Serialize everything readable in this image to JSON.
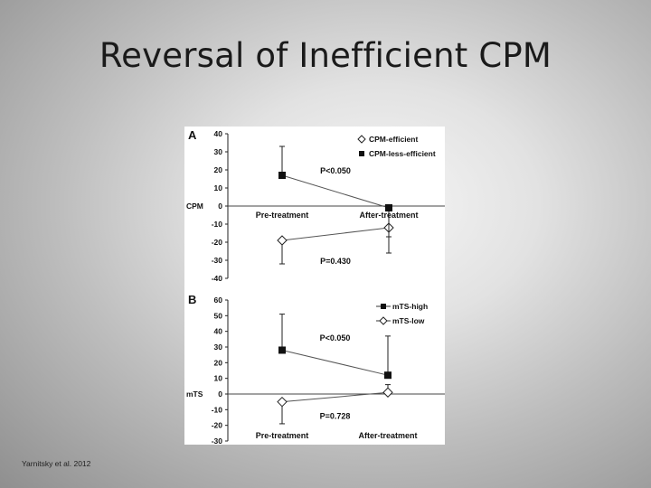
{
  "slide": {
    "title": "Reversal of Inefficient CPM",
    "citation": "Yarnitsky et al. 2012"
  },
  "chart_data": [
    {
      "type": "line",
      "panel_label": "A",
      "ylabel": "CPM",
      "categories": [
        "Pre-treatment",
        "After-treatment"
      ],
      "ylim": [
        -40,
        40
      ],
      "yticks": [
        40,
        30,
        20,
        10,
        0,
        -10,
        -20,
        -30,
        -40
      ],
      "grid": false,
      "legend_position": "top-right",
      "series": [
        {
          "name": "CPM-efficient",
          "marker": "diamond-open",
          "values": [
            -19,
            -12
          ],
          "errors": [
            13,
            14
          ]
        },
        {
          "name": "CPM-less-efficient",
          "marker": "square-filled",
          "values": [
            17,
            -1
          ],
          "errors": [
            16,
            16
          ]
        }
      ],
      "annotations": [
        {
          "text": "P<0.050",
          "x": 0.5,
          "y": 18
        },
        {
          "text": "P=0.430",
          "x": 0.5,
          "y": -32
        }
      ]
    },
    {
      "type": "line",
      "panel_label": "B",
      "ylabel": "mTS",
      "categories": [
        "Pre-treatment",
        "After-treatment"
      ],
      "ylim": [
        -30,
        60
      ],
      "yticks": [
        60,
        50,
        40,
        30,
        20,
        10,
        0,
        -10,
        -20,
        -30
      ],
      "grid": false,
      "legend_position": "top-right",
      "series": [
        {
          "name": "mTS-high",
          "marker": "square-filled",
          "values": [
            28,
            12
          ],
          "errors": [
            23,
            25
          ]
        },
        {
          "name": "mTS-low",
          "marker": "diamond-open",
          "values": [
            -5,
            1
          ],
          "errors": [
            14,
            5
          ]
        }
      ],
      "annotations": [
        {
          "text": "P<0.050",
          "x": 0.5,
          "y": 34
        },
        {
          "text": "P=0.728",
          "x": 0.5,
          "y": -16
        }
      ]
    }
  ]
}
